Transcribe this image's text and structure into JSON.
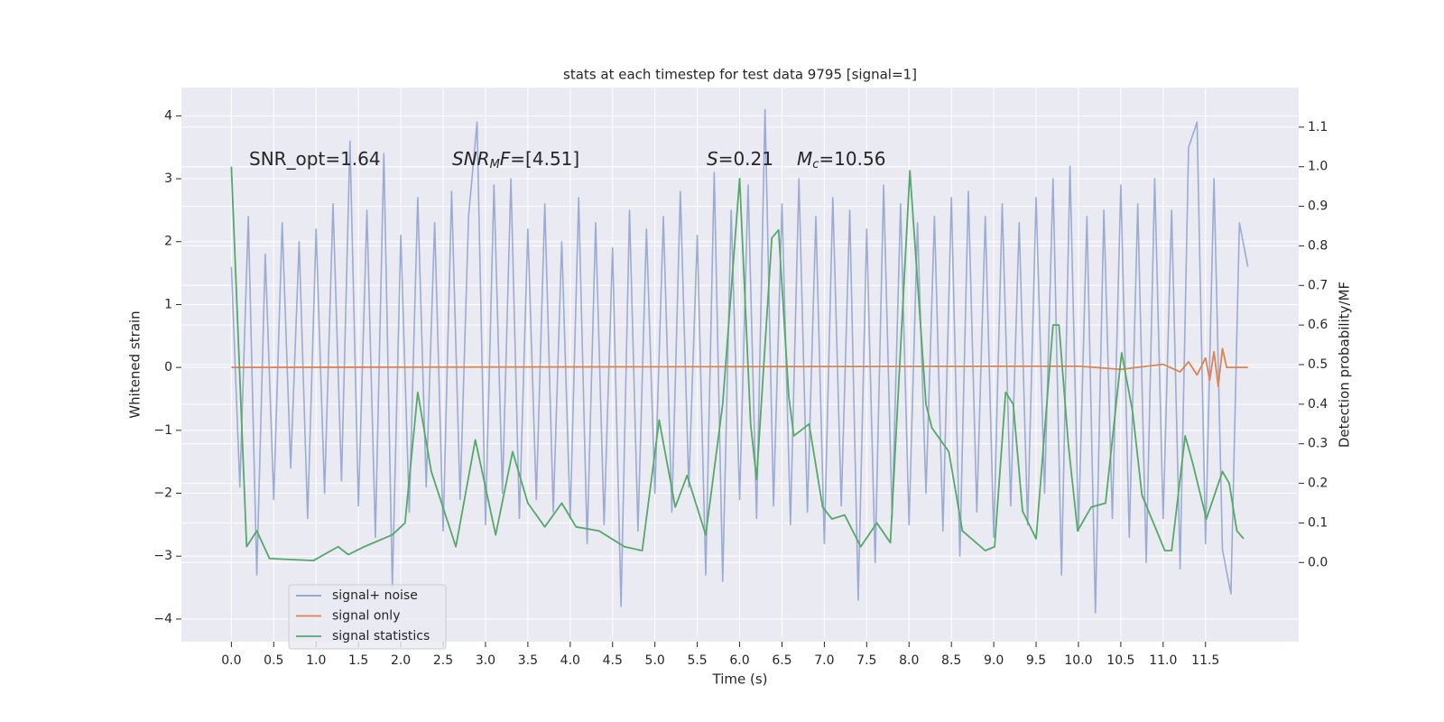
{
  "chart_data": {
    "type": "line",
    "title": "stats at each timestep for test data 9795 [signal=1]",
    "xlabel": "Time (s)",
    "ylabel": "Whitened strain",
    "y2label": "Detection probability/MF",
    "annotations": [
      [
        "SNR_opt=1.64"
      ],
      [
        "SNR",
        "M",
        "F",
        "=[4.51]"
      ],
      [
        "S",
        "=0.21",
        "M",
        "c",
        "=10.56"
      ]
    ],
    "xlim": [
      -0.59,
      12.6
    ],
    "ylim": [
      -4.36,
      4.45
    ],
    "y2lim": [
      -0.2,
      1.2
    ],
    "xticks": [
      {
        "value": 0,
        "label": "0.0"
      },
      0.5,
      {
        "value": 1,
        "label": "1.0"
      },
      1.5,
      {
        "value": 2,
        "label": "2.0"
      },
      2.5,
      {
        "value": 3,
        "label": "3.0"
      },
      3.5,
      {
        "value": 4,
        "label": "4.0"
      },
      4.5,
      {
        "value": 5,
        "label": "5.0"
      },
      5.5,
      {
        "value": 6,
        "label": "6.0"
      },
      6.5,
      {
        "value": 7,
        "label": "7.0"
      },
      7.5,
      {
        "value": 8,
        "label": "8.0"
      },
      8.5,
      {
        "value": 9,
        "label": "9.0"
      },
      9.5,
      {
        "value": 10,
        "label": "10.0"
      },
      10.5,
      {
        "value": 11,
        "label": "11.0"
      },
      11.5
    ],
    "yticks": [
      {
        "value": -4,
        "label": "−4"
      },
      {
        "value": -3,
        "label": "−3"
      },
      {
        "value": -2,
        "label": "−2"
      },
      {
        "value": -1,
        "label": "−1"
      },
      0,
      1,
      2,
      3,
      4
    ],
    "y2ticks": [
      {
        "value": 0,
        "label": "0.0"
      },
      0.1,
      0.2,
      0.3,
      0.4,
      0.5,
      0.6,
      0.7,
      0.8,
      0.9,
      {
        "value": 1,
        "label": "1.0"
      },
      1.1
    ],
    "grid": true,
    "legend": "lower left",
    "series": [
      {
        "name": "signal+ noise",
        "color": "#8da0cb",
        "axis": "y",
        "x": [
          0.0,
          0.1,
          0.2,
          0.3,
          0.4,
          0.5,
          0.6,
          0.7,
          0.8,
          0.9,
          1.0,
          1.1,
          1.2,
          1.3,
          1.4,
          1.5,
          1.6,
          1.7,
          1.8,
          1.9,
          2.0,
          2.1,
          2.2,
          2.3,
          2.4,
          2.5,
          2.6,
          2.7,
          2.8,
          2.9,
          3.0,
          3.1,
          3.2,
          3.3,
          3.4,
          3.5,
          3.6,
          3.7,
          3.8,
          3.9,
          4.0,
          4.1,
          4.2,
          4.3,
          4.4,
          4.5,
          4.6,
          4.7,
          4.8,
          4.9,
          5.0,
          5.1,
          5.2,
          5.3,
          5.4,
          5.5,
          5.6,
          5.7,
          5.8,
          5.9,
          6.0,
          6.1,
          6.2,
          6.3,
          6.4,
          6.5,
          6.6,
          6.7,
          6.8,
          6.9,
          7.0,
          7.1,
          7.2,
          7.3,
          7.4,
          7.5,
          7.6,
          7.7,
          7.8,
          7.9,
          8.0,
          8.1,
          8.2,
          8.3,
          8.4,
          8.5,
          8.6,
          8.7,
          8.8,
          8.9,
          9.0,
          9.1,
          9.2,
          9.3,
          9.4,
          9.5,
          9.6,
          9.7,
          9.8,
          9.9,
          10.0,
          10.1,
          10.2,
          10.3,
          10.4,
          10.5,
          10.6,
          10.7,
          10.8,
          10.9,
          11.0,
          11.1,
          11.2,
          11.3,
          11.4,
          11.5,
          11.6,
          11.7,
          11.8,
          11.9,
          12.0
        ],
        "values": [
          1.6,
          -1.9,
          2.4,
          -3.3,
          1.8,
          -2.1,
          2.3,
          -1.6,
          2.0,
          -2.4,
          2.2,
          -2.0,
          2.6,
          -1.8,
          3.6,
          -2.2,
          2.5,
          -2.7,
          3.4,
          -3.5,
          2.1,
          -2.3,
          2.7,
          -1.9,
          2.3,
          -2.6,
          2.8,
          -2.1,
          2.4,
          3.9,
          -2.5,
          2.9,
          -2.0,
          3.0,
          -2.4,
          2.2,
          -2.1,
          2.6,
          -2.3,
          2.0,
          -2.4,
          2.7,
          -2.8,
          2.3,
          -2.5,
          1.9,
          -3.8,
          2.5,
          -2.6,
          2.2,
          -2.0,
          2.4,
          -2.3,
          2.8,
          -1.9,
          2.1,
          -3.3,
          3.1,
          -3.4,
          2.5,
          -2.1,
          2.9,
          -2.4,
          4.1,
          -2.2,
          2.6,
          -2.5,
          3.0,
          -2.3,
          2.4,
          -2.8,
          2.7,
          -2.2,
          2.5,
          -3.7,
          2.2,
          -3.1,
          2.9,
          -2.4,
          2.6,
          -2.5,
          2.3,
          -2.0,
          2.4,
          -2.6,
          2.7,
          -3.0,
          2.8,
          -2.3,
          2.4,
          -2.7,
          2.6,
          -2.2,
          2.3,
          -2.5,
          2.7,
          -2.0,
          3.0,
          -3.3,
          3.2,
          -2.6,
          2.4,
          -3.9,
          2.5,
          -2.4,
          2.9,
          -2.7,
          2.6,
          -3.1,
          3.0,
          -2.4,
          2.5,
          -3.2,
          3.5,
          3.9,
          -2.8,
          3.0,
          -2.9,
          -3.6,
          2.3,
          1.6
        ]
      },
      {
        "name": "signal only",
        "color": "#dd8452",
        "axis": "y",
        "x": [
          0.0,
          10.0,
          10.5,
          11.0,
          11.2,
          11.3,
          11.4,
          11.5,
          11.55,
          11.6,
          11.65,
          11.7,
          11.75,
          12.0
        ],
        "values": [
          0,
          0.02,
          -0.03,
          0.05,
          -0.07,
          0.09,
          -0.12,
          0.15,
          -0.2,
          0.25,
          -0.3,
          0.3,
          0,
          0
        ]
      },
      {
        "name": "signal statistics",
        "color": "#55a868",
        "axis": "y2",
        "x": [
          0.0,
          0.18,
          0.3,
          0.45,
          0.97,
          1.26,
          1.38,
          1.57,
          1.9,
          2.05,
          2.2,
          2.36,
          2.65,
          2.88,
          3.12,
          3.32,
          3.5,
          3.7,
          3.9,
          4.07,
          4.34,
          4.64,
          4.85,
          5.05,
          5.24,
          5.38,
          5.6,
          5.8,
          6.0,
          6.13,
          6.2,
          6.38,
          6.46,
          6.58,
          6.64,
          6.82,
          6.98,
          7.09,
          7.24,
          7.43,
          7.62,
          7.78,
          8.01,
          8.2,
          8.27,
          8.47,
          8.63,
          8.9,
          9.01,
          9.14,
          9.23,
          9.34,
          9.5,
          9.7,
          9.77,
          9.88,
          9.99,
          10.15,
          10.32,
          10.51,
          10.64,
          10.75,
          11.02,
          11.1,
          11.26,
          11.35,
          11.51,
          11.7,
          11.78,
          11.87,
          11.95
        ],
        "values": [
          1.0,
          0.04,
          0.08,
          0.01,
          0.005,
          0.04,
          0.02,
          0.04,
          0.07,
          0.1,
          0.43,
          0.23,
          0.04,
          0.31,
          0.07,
          0.28,
          0.15,
          0.09,
          0.15,
          0.09,
          0.08,
          0.04,
          0.03,
          0.36,
          0.14,
          0.22,
          0.07,
          0.4,
          0.97,
          0.35,
          0.21,
          0.82,
          0.84,
          0.42,
          0.32,
          0.35,
          0.14,
          0.11,
          0.12,
          0.04,
          0.1,
          0.05,
          0.99,
          0.4,
          0.34,
          0.28,
          0.08,
          0.03,
          0.04,
          0.43,
          0.4,
          0.13,
          0.06,
          0.6,
          0.6,
          0.3,
          0.08,
          0.14,
          0.15,
          0.53,
          0.38,
          0.17,
          0.03,
          0.03,
          0.32,
          0.25,
          0.11,
          0.23,
          0.2,
          0.08,
          0.06
        ]
      }
    ]
  }
}
